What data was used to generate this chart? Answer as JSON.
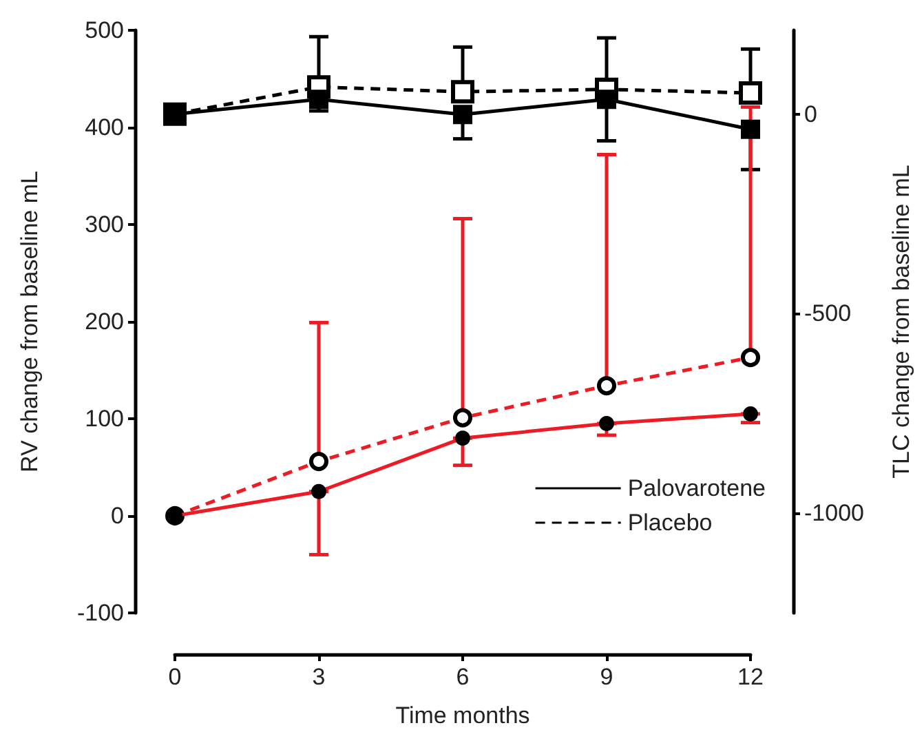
{
  "chart_data": {
    "type": "line",
    "xlabel": "Time months",
    "ylabel": "RV change from baseline mL",
    "y2label": "TLC change from baseline mL",
    "x": [
      0,
      3,
      6,
      9,
      12
    ],
    "xlim": [
      0,
      12
    ],
    "xticks": [
      0,
      3,
      6,
      9,
      12
    ],
    "ylim": [
      -100,
      500
    ],
    "yticks": [
      -100,
      0,
      100,
      200,
      300,
      400,
      500
    ],
    "y2lim": [
      -1250,
      210
    ],
    "y2ticks": [
      -1000,
      -500,
      0
    ],
    "legend": "bottom right",
    "grid": false,
    "series": [
      {
        "name": "Palovarotene",
        "color": "#000000",
        "axis": "y2",
        "marker": "square",
        "line_style": "solid",
        "values": [
          0,
          37,
          -1,
          37,
          -38
        ],
        "errors": [
          null,
          [
            8,
            37
          ],
          [
            -62,
            -1
          ],
          [
            -67,
            37
          ],
          [
            -139,
            -38
          ]
        ]
      },
      {
        "name": "Placebo",
        "color": "#000000",
        "axis": "y2",
        "marker": "square",
        "line_style": "dashed",
        "values": [
          0,
          68,
          56,
          62,
          53
        ],
        "errors": [
          null,
          [
            68,
            194
          ],
          [
            56,
            168
          ],
          [
            62,
            191
          ],
          [
            53,
            163
          ]
        ]
      },
      {
        "color": "#ed1c24",
        "marker": "circle",
        "line_style": "solid",
        "values": [
          0,
          25,
          80,
          95,
          105
        ],
        "errors": [
          null,
          [
            -40,
            25
          ],
          [
            52,
            80
          ],
          [
            83,
            95
          ],
          [
            96,
            105
          ]
        ]
      },
      {
        "color": "#ed1c24",
        "marker": "circle",
        "line_style": "dashed",
        "values": [
          0,
          56,
          101,
          134,
          163
        ],
        "errors": [
          null,
          [
            56,
            199
          ],
          [
            101,
            306
          ],
          [
            134,
            372
          ],
          [
            163,
            421
          ]
        ]
      }
    ]
  }
}
